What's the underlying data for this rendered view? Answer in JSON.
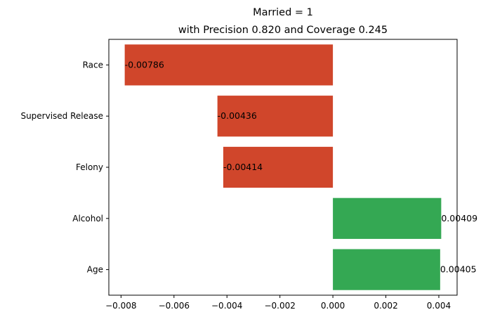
{
  "chart_data": {
    "type": "bar",
    "orientation": "horizontal",
    "title": "Married = 1",
    "subtitle": "with Precision 0.820 and Coverage 0.245",
    "xlabel": "",
    "ylabel": "",
    "categories": [
      "Race",
      "Supervised Release",
      "Felony",
      "Alcohol",
      "Age"
    ],
    "values": [
      -0.00786,
      -0.00436,
      -0.00414,
      0.00409,
      0.00405
    ],
    "value_labels": [
      "-0.00786",
      "-0.00436",
      "-0.00414",
      "0.00409",
      "0.00405"
    ],
    "xlim": [
      -0.00846,
      0.00469
    ],
    "xticks": [
      -0.008,
      -0.006,
      -0.004,
      -0.002,
      0.0,
      0.002,
      0.004
    ],
    "xtick_labels": [
      "−0.008",
      "−0.006",
      "−0.004",
      "−0.002",
      "0.000",
      "0.002",
      "0.004"
    ],
    "grid": false,
    "legend": "none",
    "colors": {
      "negative": "#d0462b",
      "positive": "#34a853"
    }
  }
}
